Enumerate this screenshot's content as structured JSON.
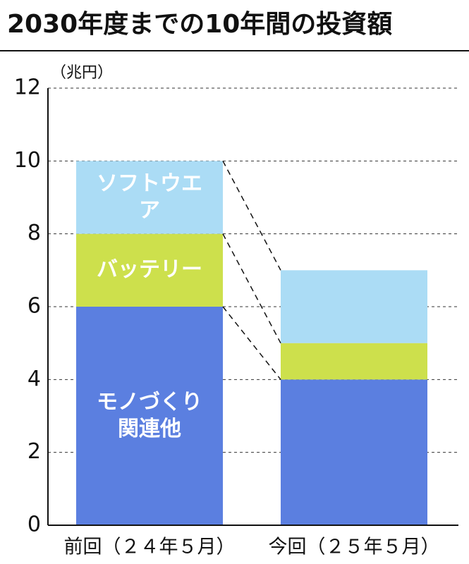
{
  "chart_data": {
    "type": "stacked_bar",
    "title": "2030年度までの10年間の投資額",
    "y_label": "（兆円）",
    "categories": [
      "前回（２４年５月）",
      "今回（２５年５月）"
    ],
    "series": [
      {
        "name": "モノづくり関連他",
        "color": "#5b7fe0",
        "values": [
          6,
          4
        ]
      },
      {
        "name": "バッテリー",
        "color": "#cde04c",
        "values": [
          2,
          1
        ]
      },
      {
        "name": "ソフトウエア",
        "color": "#abdcf5",
        "values": [
          2,
          2
        ]
      }
    ],
    "ylim": [
      0,
      12
    ],
    "yticks": [
      0,
      2,
      4,
      6,
      8,
      10,
      12
    ],
    "grid": true
  }
}
